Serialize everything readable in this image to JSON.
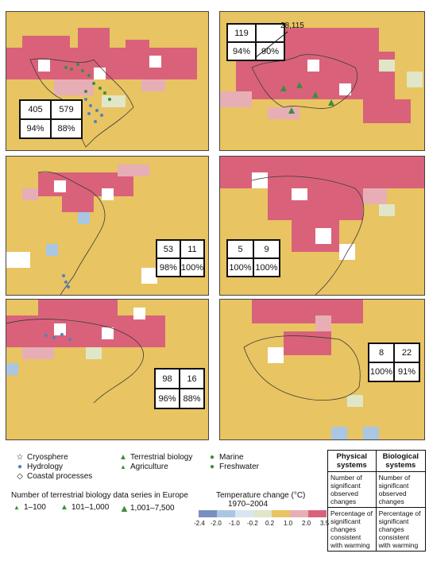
{
  "colors": {
    "bg": "#e8c462",
    "red": "#d9627a",
    "pink": "#e8aeb6",
    "white": "#ffffff",
    "lgreen": "#dfe7c8",
    "lblue": "#a9c7e2",
    "blue": "#7ba8d6",
    "coast": "#3a3a3a"
  },
  "panels": [
    {
      "id": "north-america",
      "stats": {
        "physical_count": "405",
        "biological_count": "579",
        "physical_pct": "94%",
        "biological_pct": "88%"
      }
    },
    {
      "id": "europe",
      "stats": {
        "physical_count": "119",
        "biological_count": "28,115",
        "physical_pct": "94%",
        "biological_pct": "90%"
      },
      "callout": "28,115"
    },
    {
      "id": "latin-america",
      "stats": {
        "physical_count": "53",
        "biological_count": "11",
        "physical_pct": "98%",
        "biological_pct": "100%"
      }
    },
    {
      "id": "africa",
      "stats": {
        "physical_count": "5",
        "biological_count": "9",
        "physical_pct": "100%",
        "biological_pct": "100%"
      }
    },
    {
      "id": "asia",
      "stats": {
        "physical_count": "98",
        "biological_count": "16",
        "physical_pct": "96%",
        "biological_pct": "88%"
      }
    },
    {
      "id": "australia",
      "stats": {
        "physical_count": "8",
        "biological_count": "22",
        "physical_pct": "100%",
        "biological_pct": "91%"
      }
    }
  ],
  "legend": {
    "symbols": [
      {
        "label": "Cryosphere",
        "icon": "star"
      },
      {
        "label": "Hydrology",
        "icon": "blue-circle"
      },
      {
        "label": "Coastal processes",
        "icon": "diamond"
      },
      {
        "label": "Terrestrial biology",
        "icon": "triangle"
      },
      {
        "label": "Agriculture",
        "icon": "triangle-small"
      },
      {
        "label": "Marine",
        "icon": "green-circle"
      },
      {
        "label": "Freshwater",
        "icon": "green-circle"
      }
    ],
    "europe_series_title": "Number of terrestrial biology data series in Europe",
    "europe_series": [
      "1–100",
      "101–1,000",
      "1,001–7,500"
    ],
    "temperature_title": "Temperature change (°C)",
    "temperature_period": "1970–2004",
    "temperature_ticks": [
      "-2.4",
      "-2.0",
      "-1.0",
      "-0.2",
      "0.2",
      "1.0",
      "2.0",
      "3.5"
    ],
    "temperature_colors": [
      "#7b8ec2",
      "#a9c7e2",
      "#d9e6f1",
      "#dfe7c8",
      "#e8c462",
      "#e8aeb6",
      "#d9627a"
    ]
  },
  "key_table": {
    "col1_header": "Physical systems",
    "col2_header": "Biological systems",
    "row1_col1": "Number of significant observed changes",
    "row1_col2": "Number of significant observed changes",
    "row2_col1": "Percentage of significant changes consistent with warming",
    "row2_col2": "Percentage of significant changes consistent with warming"
  }
}
